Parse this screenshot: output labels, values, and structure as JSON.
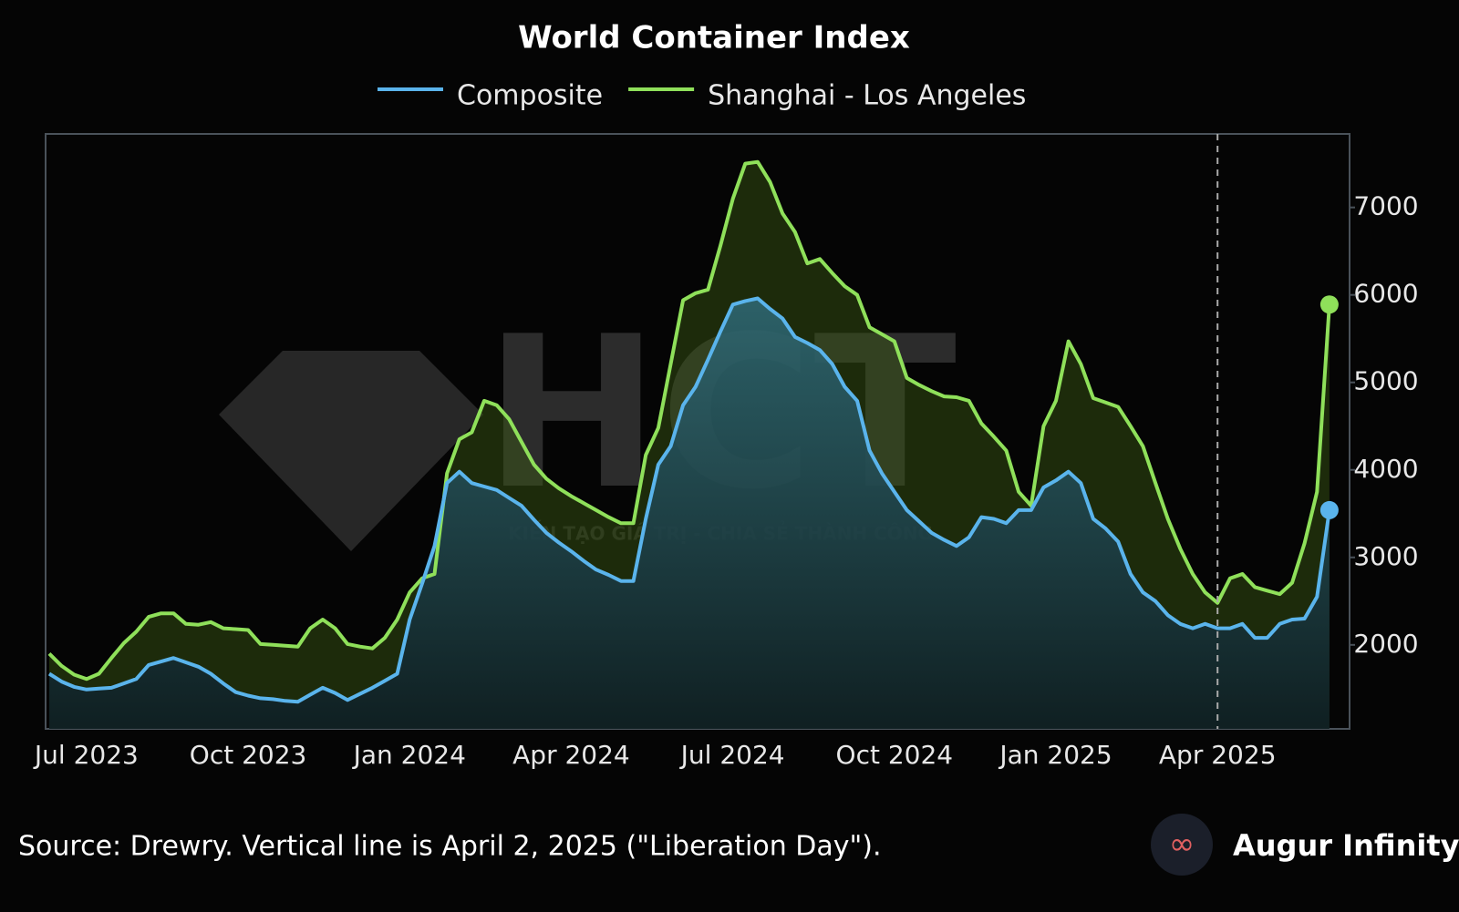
{
  "chart_data": {
    "type": "area",
    "title": "World Container Index",
    "categories": [
      null,
      null,
      null,
      "Jul 2023",
      null,
      null,
      null,
      null,
      null,
      null,
      null,
      null,
      null,
      null,
      null,
      null,
      "Oct 2023",
      null,
      null,
      null,
      null,
      null,
      null,
      null,
      null,
      null,
      null,
      null,
      null,
      "Jan 2024",
      null,
      null,
      null,
      null,
      null,
      null,
      null,
      null,
      null,
      null,
      null,
      null,
      "Apr 2024",
      null,
      null,
      null,
      null,
      null,
      null,
      null,
      null,
      null,
      null,
      null,
      null,
      "Jul 2024",
      null,
      null,
      null,
      null,
      null,
      null,
      null,
      null,
      null,
      null,
      null,
      null,
      "Oct 2024",
      null,
      null,
      null,
      null,
      null,
      null,
      null,
      null,
      null,
      null,
      null,
      null,
      "Jan 2025",
      null,
      null,
      null,
      null,
      null,
      null,
      null,
      null,
      null,
      null,
      null,
      null,
      "Apr 2025",
      null,
      null,
      null,
      null,
      null,
      null,
      null,
      null,
      null
    ],
    "series": [
      {
        "name": "Composite",
        "color": "#5ab4ec",
        "values": [
          1670,
          1580,
          1520,
          1490,
          1500,
          1510,
          1560,
          1610,
          1770,
          1810,
          1850,
          1800,
          1750,
          1670,
          1560,
          1460,
          1420,
          1390,
          1380,
          1360,
          1350,
          1430,
          1510,
          1450,
          1370,
          1440,
          1510,
          1590,
          1670,
          2290,
          2700,
          3130,
          3850,
          3980,
          3850,
          3810,
          3770,
          3680,
          3590,
          3430,
          3280,
          3170,
          3070,
          2960,
          2860,
          2800,
          2730,
          2730,
          3440,
          4060,
          4270,
          4740,
          4950,
          5260,
          5580,
          5890,
          5930,
          5960,
          5840,
          5730,
          5520,
          5450,
          5370,
          5210,
          4950,
          4790,
          4220,
          3960,
          3750,
          3540,
          3410,
          3280,
          3200,
          3130,
          3230,
          3460,
          3440,
          3390,
          3540,
          3540,
          3800,
          3880,
          3980,
          3850,
          3440,
          3330,
          3180,
          2810,
          2600,
          2500,
          2340,
          2240,
          2190,
          2240,
          2190,
          2190,
          2240,
          2080,
          2080,
          2240,
          2290,
          2300,
          2550,
          3540
        ]
      },
      {
        "name": "Shanghai - Los Angeles",
        "color": "#8fe05a",
        "values": [
          1900,
          1760,
          1660,
          1610,
          1670,
          1850,
          2020,
          2150,
          2320,
          2360,
          2360,
          2240,
          2230,
          2260,
          2190,
          2180,
          2170,
          2010,
          2000,
          1990,
          1980,
          2190,
          2290,
          2190,
          2010,
          1980,
          1960,
          2080,
          2290,
          2600,
          2760,
          2810,
          3960,
          4350,
          4430,
          4790,
          4740,
          4580,
          4320,
          4060,
          3900,
          3790,
          3700,
          3620,
          3540,
          3460,
          3390,
          3390,
          4170,
          4480,
          5210,
          5940,
          6020,
          6060,
          6560,
          7100,
          7500,
          7520,
          7290,
          6930,
          6720,
          6360,
          6410,
          6250,
          6100,
          6000,
          5630,
          5550,
          5470,
          5050,
          4970,
          4900,
          4840,
          4830,
          4790,
          4530,
          4380,
          4220,
          3750,
          3590,
          4500,
          4790,
          5470,
          5210,
          4820,
          4770,
          4720,
          4500,
          4270,
          3850,
          3440,
          3100,
          2810,
          2600,
          2480,
          2760,
          2810,
          2660,
          2620,
          2580,
          2710,
          3160,
          3750,
          5890
        ]
      }
    ],
    "ylim": [
      1040,
      7840
    ],
    "yticks": [
      2000,
      3000,
      4000,
      5000,
      6000,
      7000
    ],
    "grid": false,
    "legend": "top",
    "vline_category": "Apr 2025"
  },
  "watermark": {
    "text": "HCT",
    "tagline": "KIẾN TẠO GIÁ TRỊ - CHIA SẺ THÀNH CÔNG"
  },
  "footer": {
    "source": "Source: Drewry. Vertical line is April 2, 2025 (\"Liberation Day\").",
    "brand": "Augur Infinity"
  }
}
